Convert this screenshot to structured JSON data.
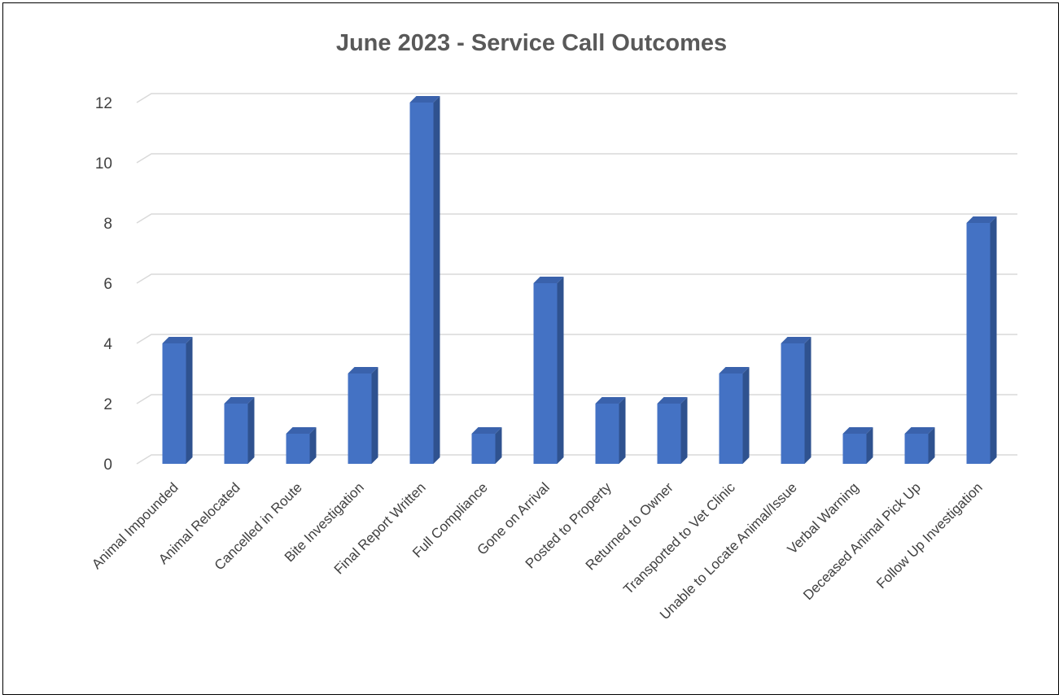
{
  "chart_data": {
    "type": "bar",
    "title": "June 2023 - Service Call Outcomes",
    "xlabel": "",
    "ylabel": "",
    "categories": [
      "Animal Impounded",
      "Animal Relocated",
      "Cancelled in Route",
      "Bite Investigation",
      "Final Report Written",
      "Full Compliance",
      "Gone on Arrival",
      "Posted to Property",
      "Returned to Owner",
      "Transported to Vet Clinic",
      "Unable to Locate Animal/Issue",
      "Verbal Warning",
      "Deceased Animal Pick Up",
      "Follow Up Investigation"
    ],
    "values": [
      4,
      2,
      1,
      3,
      12,
      1,
      6,
      2,
      2,
      3,
      4,
      1,
      1,
      8
    ],
    "ylim": [
      0,
      12
    ],
    "yticks": [
      "0",
      "2",
      "4",
      "6",
      "8",
      "10",
      "12"
    ],
    "grid": true,
    "legend": "none",
    "colors": {
      "bar_front": "#4472C4",
      "bar_side": "#2F528F",
      "bar_top": "#3A62AC",
      "grid": "#D9D9D9",
      "title": "#595959",
      "tick_text": "#404040"
    }
  }
}
